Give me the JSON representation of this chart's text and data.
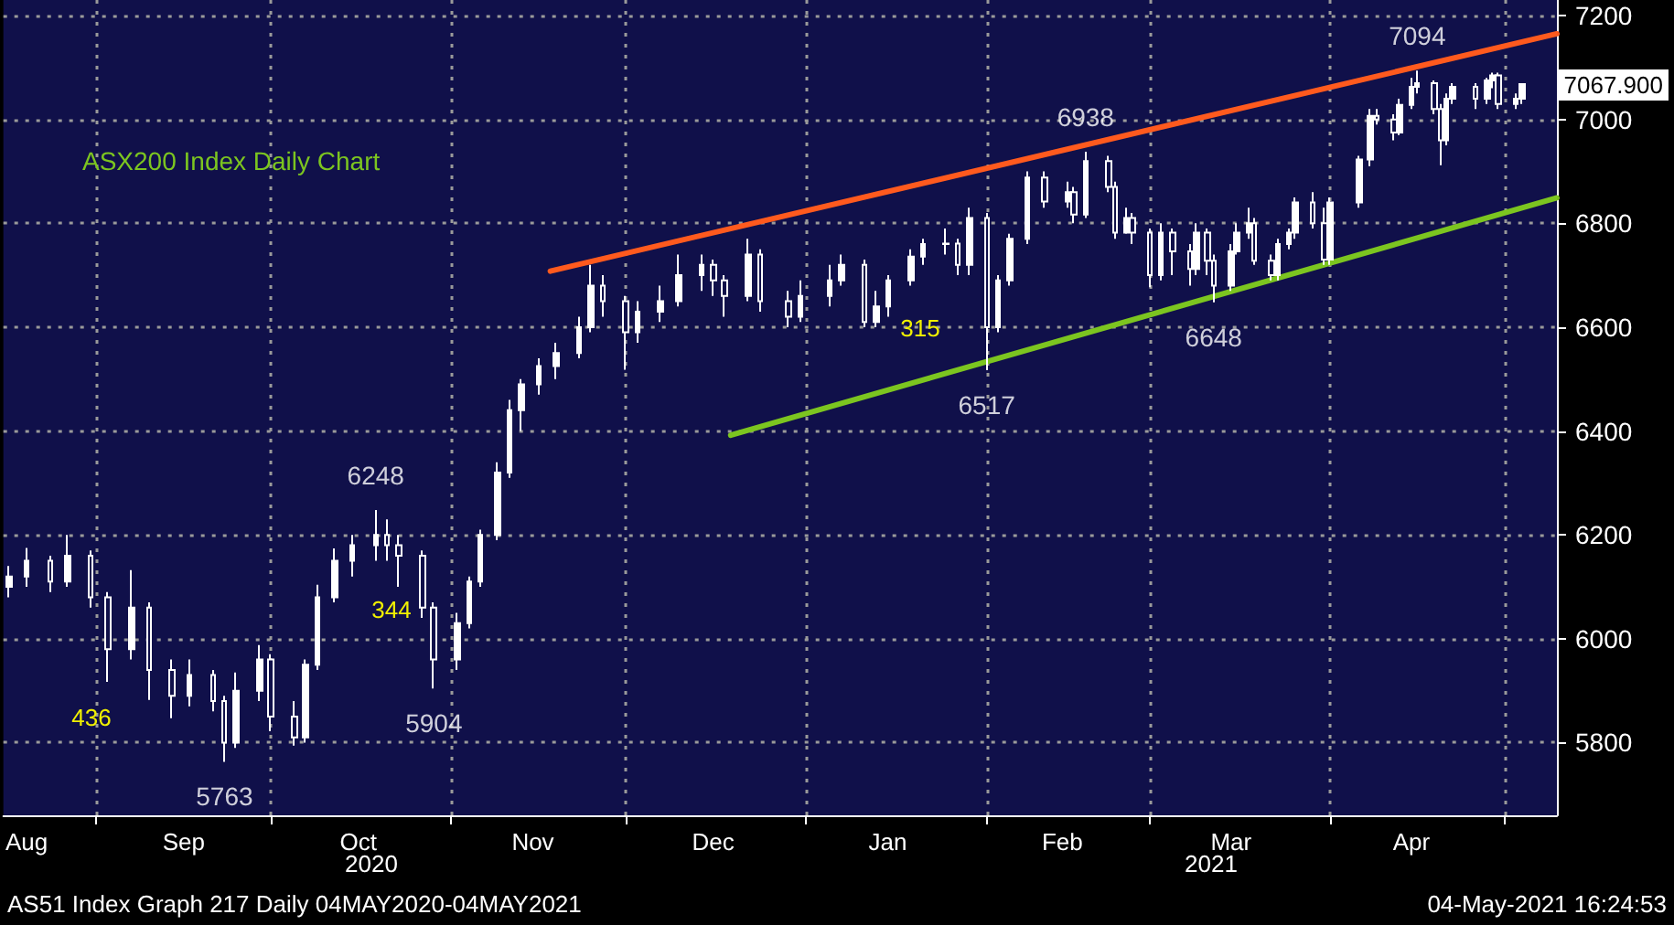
{
  "chart_data": {
    "type": "candlestick",
    "title": "ASX200 Index Daily Chart",
    "x": [
      "2020-08-17",
      "2020-08-20",
      "2020-08-24",
      "2020-08-27",
      "2020-08-31",
      "2020-09-03",
      "2020-09-07",
      "2020-09-10",
      "2020-09-14",
      "2020-09-17",
      "2020-09-21",
      "2020-09-23",
      "2020-09-25",
      "2020-09-29",
      "2020-10-01",
      "2020-10-05",
      "2020-10-07",
      "2020-10-09",
      "2020-10-12",
      "2020-10-15",
      "2020-10-19",
      "2020-10-21",
      "2020-10-23",
      "2020-10-27",
      "2020-10-29",
      "2020-11-02",
      "2020-11-04",
      "2020-11-06",
      "2020-11-09",
      "2020-11-11",
      "2020-11-13",
      "2020-11-16",
      "2020-11-19",
      "2020-11-23",
      "2020-11-25",
      "2020-11-27",
      "2020-12-01",
      "2020-12-03",
      "2020-12-07",
      "2020-12-10",
      "2020-12-14",
      "2020-12-16",
      "2020-12-18",
      "2020-12-22",
      "2020-12-24",
      "2020-12-29",
      "2020-12-31",
      "2021-01-05",
      "2021-01-07",
      "2021-01-11",
      "2021-01-13",
      "2021-01-15",
      "2021-01-19",
      "2021-01-21",
      "2021-01-25",
      "2021-01-27",
      "2021-01-29",
      "2021-02-01",
      "2021-02-03",
      "2021-02-05",
      "2021-02-08",
      "2021-02-11",
      "2021-02-15",
      "2021-02-16",
      "2021-02-18",
      "2021-02-22",
      "2021-02-23",
      "2021-02-25",
      "2021-02-26",
      "2021-03-01",
      "2021-03-03",
      "2021-03-05",
      "2021-03-08",
      "2021-03-09",
      "2021-03-11",
      "2021-03-12",
      "2021-03-15",
      "2021-03-16",
      "2021-03-18",
      "2021-03-19",
      "2021-03-22",
      "2021-03-23",
      "2021-03-25",
      "2021-03-26",
      "2021-03-29",
      "2021-03-31",
      "2021-04-01",
      "2021-04-06",
      "2021-04-08",
      "2021-04-09",
      "2021-04-12",
      "2021-04-13",
      "2021-04-15",
      "2021-04-16",
      "2021-04-19",
      "2021-04-20",
      "2021-04-21",
      "2021-04-22",
      "2021-04-26",
      "2021-04-28",
      "2021-04-29",
      "2021-04-30",
      "2021-05-03",
      "2021-05-04"
    ],
    "ohlc": [
      [
        6100,
        6140,
        6080,
        6120
      ],
      [
        6120,
        6175,
        6100,
        6150
      ],
      [
        6150,
        6160,
        6090,
        6110
      ],
      [
        6110,
        6200,
        6100,
        6160
      ],
      [
        6160,
        6170,
        6060,
        6080
      ],
      [
        6080,
        6090,
        5917,
        5980
      ],
      [
        5980,
        6132,
        5960,
        6060
      ],
      [
        6060,
        6070,
        5882,
        5940
      ],
      [
        5940,
        5960,
        5847,
        5890
      ],
      [
        5890,
        5960,
        5870,
        5930
      ],
      [
        5930,
        5940,
        5860,
        5880
      ],
      [
        5880,
        5890,
        5763,
        5800
      ],
      [
        5800,
        5935,
        5790,
        5900
      ],
      [
        5900,
        5988,
        5880,
        5960
      ],
      [
        5960,
        5970,
        5822,
        5850
      ],
      [
        5850,
        5880,
        5794,
        5810
      ],
      [
        5810,
        5960,
        5800,
        5950
      ],
      [
        5950,
        6104,
        5940,
        6080
      ],
      [
        6080,
        6174,
        6070,
        6150
      ],
      [
        6150,
        6200,
        6120,
        6180
      ],
      [
        6180,
        6248,
        6150,
        6200
      ],
      [
        6200,
        6230,
        6150,
        6180
      ],
      [
        6180,
        6200,
        6100,
        6160
      ],
      [
        6160,
        6170,
        6040,
        6060
      ],
      [
        6060,
        6070,
        5904,
        5960
      ],
      [
        5960,
        6050,
        5940,
        6030
      ],
      [
        6030,
        6120,
        6020,
        6110
      ],
      [
        6110,
        6210,
        6100,
        6200
      ],
      [
        6200,
        6340,
        6190,
        6320
      ],
      [
        6320,
        6460,
        6310,
        6440
      ],
      [
        6440,
        6500,
        6400,
        6490
      ],
      [
        6490,
        6540,
        6470,
        6525
      ],
      [
        6525,
        6570,
        6500,
        6550
      ],
      [
        6550,
        6620,
        6540,
        6600
      ],
      [
        6600,
        6720,
        6590,
        6680
      ],
      [
        6680,
        6700,
        6620,
        6650
      ],
      [
        6650,
        6660,
        6518,
        6590
      ],
      [
        6590,
        6650,
        6570,
        6630
      ],
      [
        6630,
        6680,
        6610,
        6650
      ],
      [
        6650,
        6740,
        6640,
        6700
      ],
      [
        6700,
        6740,
        6670,
        6720
      ],
      [
        6720,
        6730,
        6660,
        6690
      ],
      [
        6690,
        6700,
        6620,
        6660
      ],
      [
        6660,
        6770,
        6650,
        6740
      ],
      [
        6740,
        6750,
        6630,
        6650
      ],
      [
        6650,
        6670,
        6600,
        6620
      ],
      [
        6620,
        6690,
        6610,
        6660
      ],
      [
        6660,
        6720,
        6640,
        6690
      ],
      [
        6690,
        6740,
        6680,
        6720
      ],
      [
        6720,
        6730,
        6600,
        6610
      ],
      [
        6610,
        6670,
        6600,
        6640
      ],
      [
        6640,
        6700,
        6620,
        6690
      ],
      [
        6690,
        6750,
        6680,
        6736
      ],
      [
        6736,
        6770,
        6720,
        6760
      ],
      [
        6760,
        6790,
        6740,
        6761
      ],
      [
        6761,
        6770,
        6700,
        6720
      ],
      [
        6720,
        6830,
        6700,
        6810
      ],
      [
        6810,
        6820,
        6517,
        6600
      ],
      [
        6600,
        6700,
        6590,
        6690
      ],
      [
        6690,
        6780,
        6680,
        6770
      ],
      [
        6770,
        6900,
        6760,
        6888
      ],
      [
        6888,
        6900,
        6830,
        6842
      ],
      [
        6842,
        6880,
        6830,
        6860
      ],
      [
        6860,
        6870,
        6800,
        6817
      ],
      [
        6817,
        6938,
        6810,
        6920
      ],
      [
        6920,
        6930,
        6860,
        6870
      ],
      [
        6870,
        6880,
        6770,
        6782
      ],
      [
        6782,
        6830,
        6780,
        6810
      ],
      [
        6810,
        6820,
        6760,
        6782
      ],
      [
        6782,
        6790,
        6677,
        6700
      ],
      [
        6700,
        6800,
        6690,
        6782
      ],
      [
        6782,
        6790,
        6700,
        6746
      ],
      [
        6746,
        6760,
        6680,
        6712
      ],
      [
        6712,
        6800,
        6700,
        6782
      ],
      [
        6782,
        6790,
        6700,
        6728
      ],
      [
        6728,
        6740,
        6648,
        6680
      ],
      [
        6680,
        6760,
        6670,
        6746
      ],
      [
        6746,
        6800,
        6740,
        6782
      ],
      [
        6782,
        6830,
        6770,
        6800
      ],
      [
        6800,
        6810,
        6720,
        6728
      ],
      [
        6728,
        6740,
        6690,
        6700
      ],
      [
        6700,
        6770,
        6690,
        6760
      ],
      [
        6760,
        6790,
        6750,
        6782
      ],
      [
        6782,
        6850,
        6770,
        6840
      ],
      [
        6840,
        6860,
        6790,
        6800
      ],
      [
        6800,
        6830,
        6720,
        6730
      ],
      [
        6730,
        6850,
        6720,
        6840
      ],
      [
        6840,
        6930,
        6830,
        6923
      ],
      [
        6923,
        7020,
        6910,
        7007
      ],
      [
        7007,
        7020,
        6990,
        7000
      ],
      [
        7000,
        7010,
        6960,
        6975
      ],
      [
        6975,
        7040,
        6970,
        7028
      ],
      [
        7028,
        7080,
        7020,
        7063
      ],
      [
        7063,
        7094,
        7050,
        7070
      ],
      [
        7070,
        7075,
        7010,
        7020
      ],
      [
        7020,
        7030,
        6912,
        6960
      ],
      [
        6960,
        7050,
        6950,
        7040
      ],
      [
        7040,
        7070,
        7030,
        7063
      ],
      [
        7063,
        7070,
        7020,
        7040
      ],
      [
        7040,
        7080,
        7030,
        7075
      ],
      [
        7075,
        7090,
        7060,
        7085
      ],
      [
        7085,
        7090,
        7020,
        7030
      ],
      [
        7030,
        7050,
        7020,
        7040
      ],
      [
        7040,
        7070,
        7030,
        7067.9
      ]
    ],
    "color": "#ffffff",
    "series": [
      {
        "type": "line",
        "color": "#ff5a1e",
        "x": [
          "2020-11-18",
          "2021-05-10"
        ],
        "values": [
          6708,
          7165
        ]
      },
      {
        "type": "line",
        "color": "#7cc520",
        "x": [
          "2020-12-19",
          "2021-05-10"
        ],
        "values": [
          6392,
          6849
        ]
      }
    ],
    "xlim": [
      "2020-08-16",
      "2021-05-10"
    ],
    "xticks": [
      {
        "value": "2020-08-20",
        "label": "Aug"
      },
      {
        "value": "2020-09-01",
        "label": null
      },
      {
        "value": "2020-09-16",
        "label": "Sep"
      },
      {
        "value": "2020-10-01",
        "label": null
      },
      {
        "value": "2020-10-16",
        "label": "Oct"
      },
      {
        "value": "2020-11-01",
        "label": null
      },
      {
        "value": "2020-11-15",
        "label": "Nov"
      },
      {
        "value": "2020-12-01",
        "label": null
      },
      {
        "value": "2020-12-16",
        "label": "Dec"
      },
      {
        "value": "2021-01-01",
        "label": null
      },
      {
        "value": "2021-01-15",
        "label": "Jan"
      },
      {
        "value": "2021-02-01",
        "label": null
      },
      {
        "value": "2021-02-14",
        "label": "Feb"
      },
      {
        "value": "2021-03-01",
        "label": null
      },
      {
        "value": "2021-03-15",
        "label": "Mar"
      },
      {
        "value": "2021-04-01",
        "label": null
      },
      {
        "value": "2021-04-15",
        "label": "Apr"
      },
      {
        "value": "2021-05-01",
        "label": null
      }
    ],
    "ylim": [
      5660,
      7230
    ],
    "yticks": [
      5800,
      6000,
      6200,
      6400,
      6600,
      6800,
      7000,
      7200
    ],
    "grid": true,
    "annotations": [
      {
        "text": "6938",
        "x": "2021-02-18",
        "y": 6938
      },
      {
        "text": "7094",
        "x": "2021-04-16",
        "y": 7094
      },
      {
        "text": "6248",
        "x": "2020-10-19",
        "y": 6248
      },
      {
        "text": "5763",
        "x": "2020-09-23",
        "y": 5763
      },
      {
        "text": "5904",
        "x": "2020-10-29",
        "y": 5904
      },
      {
        "text": "6517",
        "x": "2021-02-01",
        "y": 6517
      },
      {
        "text": "6648",
        "x": "2021-03-12",
        "y": 6648
      },
      "436",
      "344",
      "315",
      "2020",
      "2021",
      "AS51 Index Graph 217 Daily 04MAY2020-04MAY2021",
      "04-May-2021 16:24:53",
      "7067.900"
    ]
  }
}
